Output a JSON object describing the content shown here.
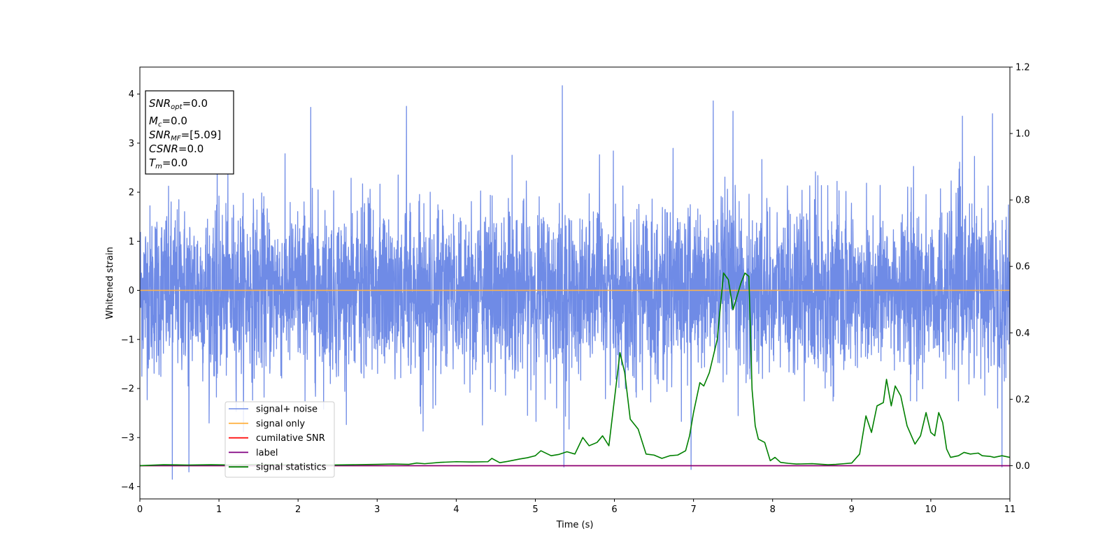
{
  "chart_data": {
    "type": "line",
    "xlabel": "Time (s)",
    "ylabel": "Whitened strain",
    "xlim": [
      0,
      11
    ],
    "ylim_left": [
      -4.25,
      4.55
    ],
    "ylim_right": [
      -0.1,
      1.2
    ],
    "x_ticks": [
      0,
      1,
      2,
      3,
      4,
      5,
      6,
      7,
      8,
      9,
      10,
      11
    ],
    "y_ticks_left": [
      -4,
      -3,
      -2,
      -1,
      0,
      1,
      2,
      3,
      4
    ],
    "y_tick_labels_left": [
      "−4",
      "−3",
      "−2",
      "−1",
      "0",
      "1",
      "2",
      "3",
      "4"
    ],
    "y_ticks_right": [
      0.0,
      0.2,
      0.4,
      0.6,
      0.8,
      1.0,
      1.2
    ],
    "y_tick_labels_right": [
      "0.0",
      "0.2",
      "0.4",
      "0.6",
      "0.8",
      "1.0",
      "1.2"
    ],
    "legend_placement": "lower-left",
    "annotation": {
      "lines": [
        {
          "sym": "SNR",
          "sub": "opt",
          "rest": "=0.0"
        },
        {
          "sym": "M",
          "sub": "c",
          "rest": "=0.0"
        },
        {
          "sym": "SNR",
          "sub": "MF",
          "rest": "=[5.09]"
        },
        {
          "sym": "CSNR",
          "sub": "",
          "rest": "=0.0"
        },
        {
          "sym": "T",
          "sub": "m",
          "rest": "=0.0"
        }
      ]
    },
    "series": [
      {
        "name": "signal+ noise",
        "axis": "left",
        "color": "#6f8be6",
        "kind": "noise",
        "noise_sigma": 0.85,
        "notable_peaks": [
          [
            0.41,
            -3.85
          ],
          [
            0.62,
            -3.7
          ],
          [
            2.16,
            3.73
          ],
          [
            3.37,
            3.75
          ],
          [
            5.34,
            4.17
          ],
          [
            5.36,
            -3.6
          ],
          [
            6.97,
            -3.65
          ],
          [
            7.25,
            3.86
          ],
          [
            7.5,
            3.65
          ],
          [
            10.4,
            3.55
          ],
          [
            10.78,
            3.6
          ],
          [
            10.9,
            -3.6
          ]
        ]
      },
      {
        "name": "signal only",
        "axis": "left",
        "color": "#ffb347",
        "kind": "constant",
        "value": 0.0
      },
      {
        "name": "cumilative SNR",
        "axis": "right",
        "color": "#ff0000",
        "kind": "constant",
        "value": 0.0
      },
      {
        "name": "label",
        "axis": "right",
        "color": "#800080",
        "kind": "constant",
        "value": 0.0
      },
      {
        "name": "signal statistics",
        "axis": "right",
        "color": "#008000",
        "kind": "line",
        "x": [
          0.0,
          0.3,
          0.6,
          0.9,
          1.2,
          1.5,
          1.8,
          2.1,
          2.4,
          2.7,
          3.0,
          3.2,
          3.4,
          3.5,
          3.6,
          3.8,
          4.0,
          4.2,
          4.4,
          4.45,
          4.55,
          4.65,
          4.8,
          4.9,
          5.0,
          5.07,
          5.2,
          5.3,
          5.4,
          5.5,
          5.6,
          5.68,
          5.78,
          5.85,
          5.93,
          6.0,
          6.07,
          6.13,
          6.2,
          6.3,
          6.4,
          6.5,
          6.6,
          6.7,
          6.8,
          6.9,
          6.95,
          7.0,
          7.08,
          7.13,
          7.2,
          7.3,
          7.38,
          7.44,
          7.5,
          7.6,
          7.65,
          7.7,
          7.74,
          7.78,
          7.82,
          7.9,
          7.97,
          8.03,
          8.1,
          8.2,
          8.3,
          8.5,
          8.7,
          8.8,
          8.9,
          9.0,
          9.1,
          9.18,
          9.25,
          9.32,
          9.4,
          9.44,
          9.5,
          9.55,
          9.62,
          9.7,
          9.8,
          9.87,
          9.94,
          10.0,
          10.05,
          10.1,
          10.15,
          10.2,
          10.25,
          10.35,
          10.42,
          10.5,
          10.6,
          10.65,
          10.75,
          10.8,
          10.9,
          11.0
        ],
        "y": [
          0.0,
          0.003,
          0.002,
          0.003,
          0.002,
          0.004,
          0.003,
          0.003,
          0.002,
          0.003,
          0.004,
          0.005,
          0.004,
          0.008,
          0.006,
          0.01,
          0.012,
          0.011,
          0.012,
          0.022,
          0.009,
          0.013,
          0.02,
          0.024,
          0.03,
          0.045,
          0.03,
          0.034,
          0.042,
          0.035,
          0.085,
          0.06,
          0.07,
          0.09,
          0.06,
          0.2,
          0.34,
          0.28,
          0.14,
          0.11,
          0.035,
          0.032,
          0.022,
          0.03,
          0.032,
          0.045,
          0.09,
          0.16,
          0.25,
          0.24,
          0.28,
          0.38,
          0.58,
          0.56,
          0.47,
          0.55,
          0.58,
          0.57,
          0.23,
          0.12,
          0.08,
          0.07,
          0.015,
          0.025,
          0.01,
          0.007,
          0.005,
          0.006,
          0.003,
          0.004,
          0.006,
          0.008,
          0.035,
          0.15,
          0.1,
          0.18,
          0.19,
          0.26,
          0.18,
          0.24,
          0.21,
          0.12,
          0.065,
          0.09,
          0.16,
          0.1,
          0.09,
          0.16,
          0.13,
          0.05,
          0.025,
          0.03,
          0.04,
          0.035,
          0.038,
          0.03,
          0.028,
          0.025,
          0.03,
          0.025
        ]
      }
    ]
  }
}
